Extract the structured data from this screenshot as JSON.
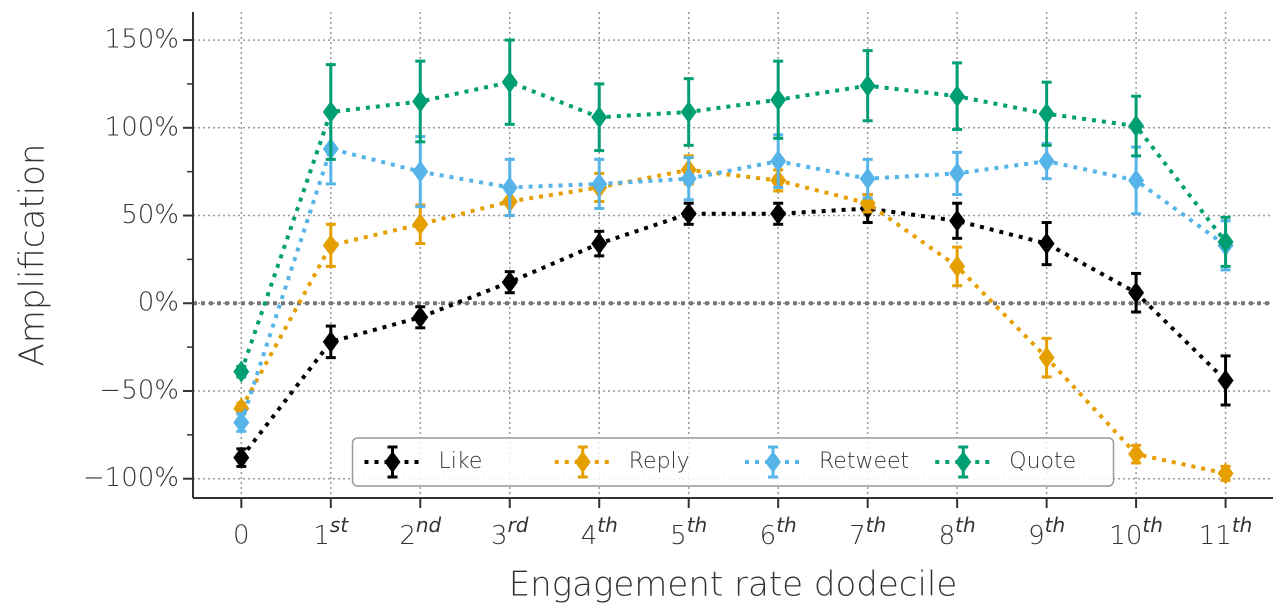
{
  "chart_data": {
    "type": "line",
    "xlabel": "Engagement rate dodecile",
    "ylabel": "Amplification",
    "categories": [
      "0",
      "1st",
      "2nd",
      "3rd",
      "4th",
      "5th",
      "6th",
      "7th",
      "8th",
      "9th",
      "10th",
      "11th"
    ],
    "xlim": [
      -0.54,
      11.53
    ],
    "ylim": [
      -111,
      166
    ],
    "yticks": [
      {
        "value": -100,
        "label": "−100%"
      },
      {
        "value": -50,
        "label": "−50%"
      },
      {
        "value": 0,
        "label": "0%"
      },
      {
        "value": 50,
        "label": "50%"
      },
      {
        "value": 100,
        "label": "100%"
      },
      {
        "value": 150,
        "label": "150%"
      }
    ],
    "yminorticks": [
      -75,
      -25,
      25,
      75,
      125
    ],
    "reference_line": 0,
    "grid": true,
    "legend": "lower center",
    "series": [
      {
        "name": "Like",
        "color": "#000000",
        "values": [
          -88,
          -22,
          -8,
          12,
          34,
          51,
          51,
          54,
          47,
          34,
          6,
          -44
        ],
        "errors": [
          5,
          9,
          6,
          6,
          7,
          6,
          6,
          8,
          10,
          12,
          11,
          14
        ]
      },
      {
        "name": "Reply",
        "color": "#e69f00",
        "values": [
          -60,
          33,
          45,
          58,
          66,
          76,
          70,
          57,
          21,
          -31,
          -86,
          -97
        ],
        "errors": [
          3,
          12,
          11,
          8,
          8,
          8,
          6,
          5,
          11,
          11,
          5,
          4
        ]
      },
      {
        "name": "Retweet",
        "color": "#56b4e9",
        "values": [
          -68,
          88,
          75,
          66,
          68,
          71,
          81,
          71,
          74,
          81,
          70,
          33
        ],
        "errors": [
          5,
          20,
          20,
          16,
          14,
          12,
          15,
          11,
          12,
          10,
          19,
          14
        ]
      },
      {
        "name": "Quote",
        "color": "#009e73",
        "values": [
          -39,
          109,
          115,
          126,
          106,
          109,
          116,
          124,
          118,
          108,
          101,
          35
        ],
        "errors": [
          3,
          27,
          23,
          24,
          19,
          19,
          22,
          20,
          19,
          18,
          17,
          14
        ]
      }
    ]
  }
}
